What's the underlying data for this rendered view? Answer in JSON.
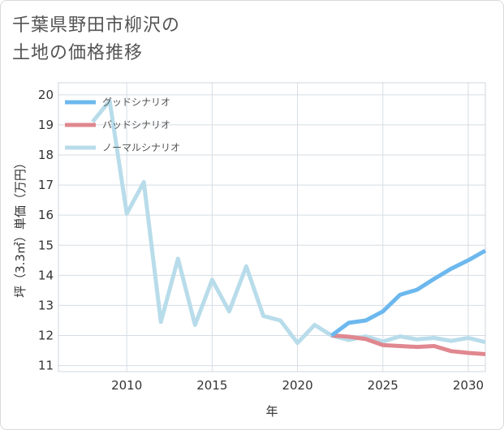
{
  "title_line1": "千葉県野田市柳沢の",
  "title_line2": "土地の価格推移",
  "chart_data": {
    "type": "line",
    "title": "千葉県野田市柳沢の土地の価格推移",
    "xlabel": "年",
    "ylabel": "坪（3.3㎡）単価（万円）",
    "xlim": [
      2006,
      2031
    ],
    "ylim": [
      10.8,
      20.4
    ],
    "xticks": [
      2010,
      2015,
      2020,
      2025,
      2030
    ],
    "yticks": [
      11,
      12,
      13,
      14,
      15,
      16,
      17,
      18,
      19,
      20
    ],
    "grid": true,
    "legend_position": "top-left",
    "series": [
      {
        "name": "グッドシナリオ",
        "color": "#6cb8ee",
        "x": [
          2022,
          2023,
          2024,
          2025,
          2026,
          2027,
          2028,
          2029,
          2030,
          2031
        ],
        "y": [
          12.0,
          12.42,
          12.5,
          12.8,
          13.35,
          13.52,
          13.88,
          14.22,
          14.5,
          14.82
        ]
      },
      {
        "name": "バッドシナリオ",
        "color": "#e0878f",
        "x": [
          2022,
          2023,
          2024,
          2025,
          2026,
          2027,
          2028,
          2029,
          2030,
          2031
        ],
        "y": [
          12.0,
          11.96,
          11.88,
          11.68,
          11.65,
          11.62,
          11.65,
          11.48,
          11.42,
          11.38
        ]
      },
      {
        "name": "ノーマルシナリオ",
        "color": "#b8dcea",
        "x": [
          2008,
          2009,
          2010,
          2011,
          2012,
          2013,
          2014,
          2015,
          2016,
          2017,
          2018,
          2019,
          2020,
          2021,
          2022,
          2023,
          2024,
          2025,
          2026,
          2027,
          2028,
          2029,
          2030,
          2031
        ],
        "y": [
          19.1,
          19.8,
          16.05,
          17.1,
          12.45,
          14.55,
          12.35,
          13.85,
          12.8,
          14.3,
          12.65,
          12.5,
          11.75,
          12.35,
          12.0,
          11.85,
          11.97,
          11.8,
          11.97,
          11.87,
          11.92,
          11.82,
          11.92,
          11.78
        ]
      }
    ]
  }
}
